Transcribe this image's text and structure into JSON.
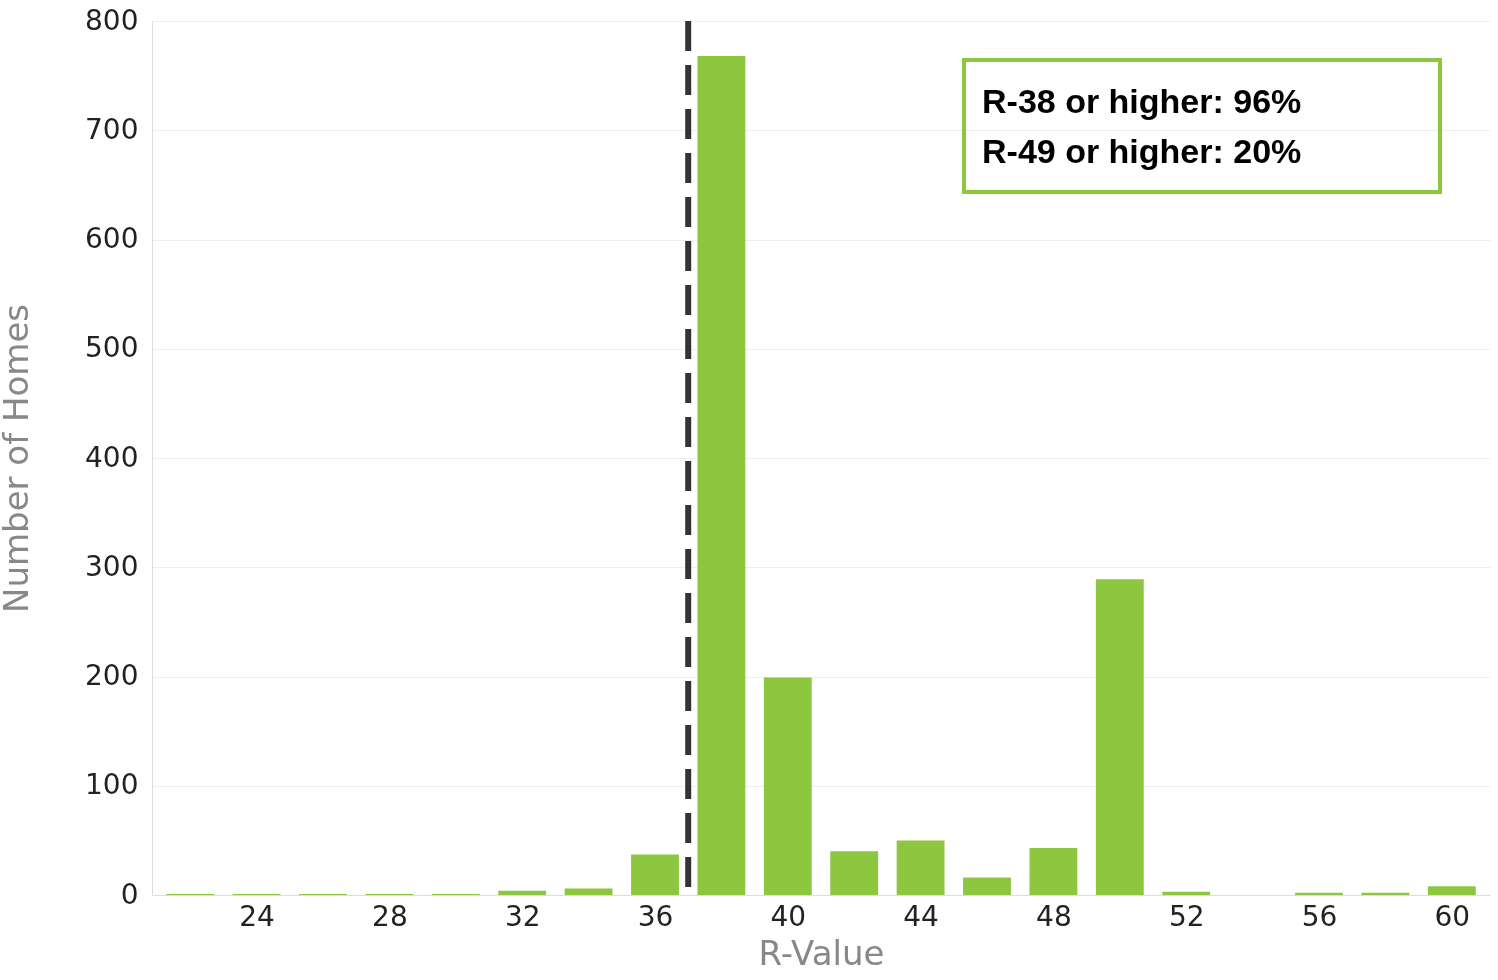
{
  "chart_data": {
    "type": "bar",
    "xlabel": "R-Value",
    "ylabel": "Number of Homes",
    "x": [
      22,
      24,
      26,
      28,
      30,
      32,
      34,
      36,
      38,
      40,
      42,
      44,
      46,
      48,
      50,
      52,
      54,
      56,
      58,
      60
    ],
    "values": [
      1,
      1,
      1,
      1,
      1,
      4,
      6,
      37,
      768,
      199,
      40,
      50,
      16,
      43,
      289,
      3,
      null,
      2,
      2,
      8
    ],
    "color": "#8dc63f",
    "xlim": [
      21,
      61
    ],
    "xticks": [
      24,
      28,
      32,
      36,
      40,
      44,
      48,
      52,
      56,
      60
    ],
    "ylim": [
      0,
      800
    ],
    "yticks": [
      0,
      100,
      200,
      300,
      400,
      500,
      600,
      700,
      800
    ],
    "grid": "y",
    "ref_lines": [
      {
        "axis": "x",
        "value": 37,
        "color": "#333333",
        "line_style": "dashed"
      }
    ],
    "annotations": [
      "R-38 or higher: 96%",
      "R-49 or higher: 20%"
    ]
  }
}
